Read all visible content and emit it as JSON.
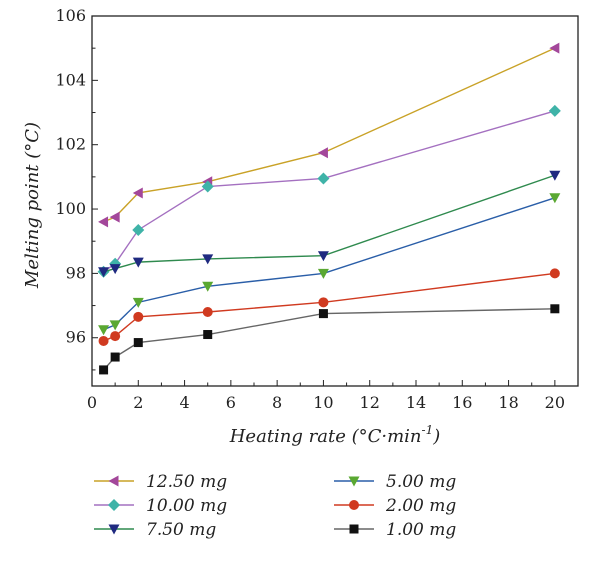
{
  "chart_data": {
    "type": "line",
    "xlabel_main": "Heating rate (°C·min",
    "xlabel_sup": "-1",
    "xlabel_tail": ")",
    "ylabel": "Melting point (°C)",
    "xlim": [
      0,
      21
    ],
    "ylim": [
      94.5,
      106
    ],
    "xticks": [
      0,
      2,
      4,
      6,
      8,
      10,
      12,
      14,
      16,
      18,
      20
    ],
    "yticks": [
      96,
      98,
      100,
      102,
      104,
      106
    ],
    "grid": false,
    "legend_position": "bottom",
    "series": [
      {
        "name": "12.50 mg",
        "color": "#c9a227",
        "markerColor": "#a3479a",
        "marker": "triangle-left",
        "x": [
          0.5,
          1,
          2,
          5,
          10,
          20
        ],
        "y": [
          99.6,
          99.75,
          100.5,
          100.85,
          101.75,
          105.0
        ]
      },
      {
        "name": "10.00 mg",
        "color": "#a470c0",
        "markerColor": "#3fb3a8",
        "marker": "diamond",
        "x": [
          0.5,
          1,
          2,
          5,
          10,
          20
        ],
        "y": [
          98.05,
          98.3,
          99.35,
          100.7,
          100.95,
          103.05
        ]
      },
      {
        "name": "7.50 mg",
        "color": "#2f8a4e",
        "markerColor": "#1f2a80",
        "marker": "triangle-down",
        "x": [
          0.5,
          1,
          2,
          5,
          10,
          20
        ],
        "y": [
          98.05,
          98.15,
          98.35,
          98.45,
          98.55,
          101.05
        ]
      },
      {
        "name": "5.00 mg",
        "color": "#2a5ea8",
        "markerColor": "#5aa832",
        "marker": "triangle-down",
        "x": [
          0.5,
          1,
          2,
          5,
          10,
          20
        ],
        "y": [
          96.25,
          96.4,
          97.1,
          97.6,
          98.0,
          100.35
        ]
      },
      {
        "name": "2.00 mg",
        "color": "#d03a20",
        "markerColor": "#d03a20",
        "marker": "circle",
        "x": [
          0.5,
          1,
          2,
          5,
          10,
          20
        ],
        "y": [
          95.9,
          96.05,
          96.65,
          96.8,
          97.1,
          98.0
        ]
      },
      {
        "name": "1.00 mg",
        "color": "#666666",
        "markerColor": "#111111",
        "marker": "square",
        "x": [
          0.5,
          1,
          2,
          5,
          10,
          20
        ],
        "y": [
          95.0,
          95.4,
          95.85,
          96.1,
          96.75,
          96.9
        ]
      }
    ]
  }
}
